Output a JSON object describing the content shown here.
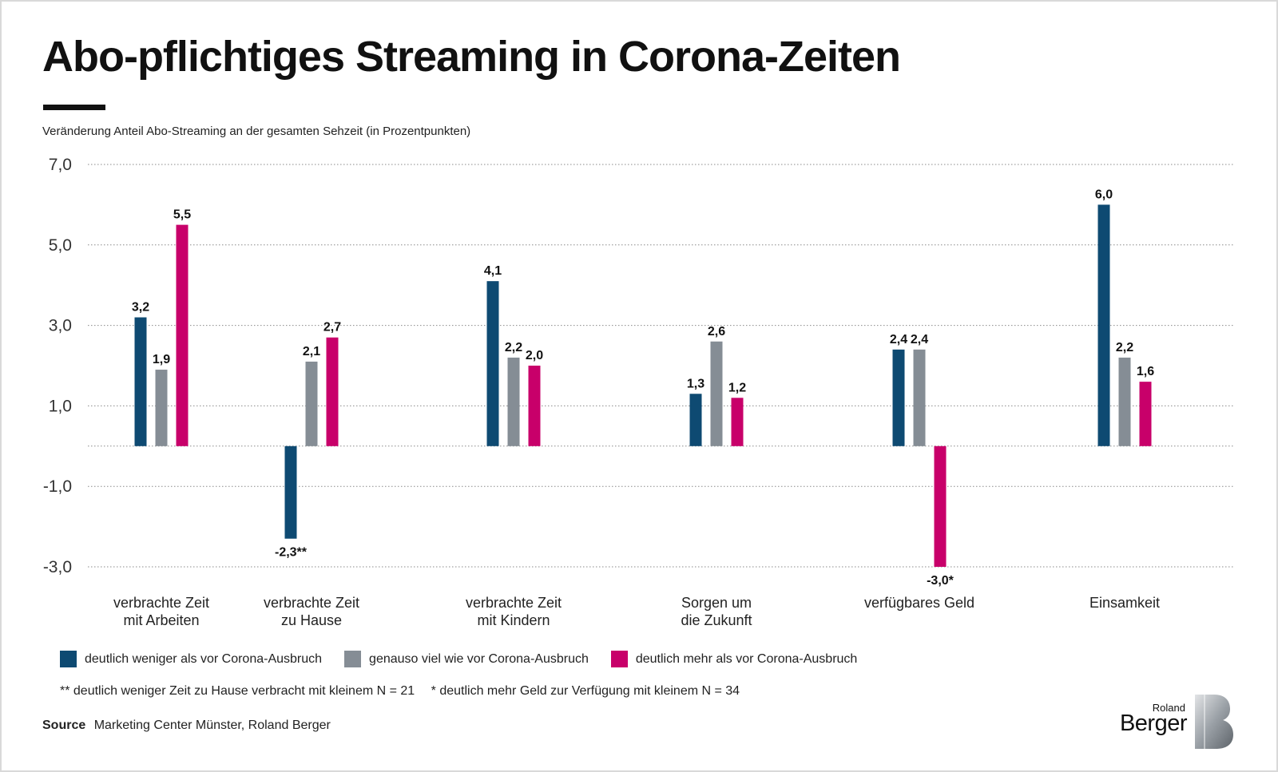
{
  "title": "Abo-pflichtiges Streaming in Corona-Zeiten",
  "subtitle": "Veränderung Anteil Abo-Streaming an der gesamten Sehzeit (in Prozentpunkten)",
  "chart_data": {
    "type": "bar",
    "ylim": [
      -3.0,
      7.0
    ],
    "yticks": [
      {
        "value": 7.0,
        "label": "7,0"
      },
      {
        "value": 5.0,
        "label": "5,0"
      },
      {
        "value": 3.0,
        "label": "3,0"
      },
      {
        "value": 1.0,
        "label": "1,0"
      },
      {
        "value": -1.0,
        "label": "-1,0"
      },
      {
        "value": -3.0,
        "label": "-3,0"
      }
    ],
    "grid": true,
    "categories": [
      [
        "verbrachte Zeit",
        "mit Arbeiten"
      ],
      [
        "verbrachte Zeit",
        "zu Hause"
      ],
      [
        "verbrachte Zeit",
        "mit Kindern"
      ],
      [
        "Sorgen um",
        "die Zukunft"
      ],
      [
        "verfügbares Geld"
      ],
      [
        "Einsamkeit"
      ]
    ],
    "series": [
      {
        "name": "deutlich weniger als vor Corona-Ausbruch",
        "color": "#0e4a72",
        "values": [
          3.2,
          -2.3,
          4.1,
          1.3,
          2.4,
          6.0
        ],
        "labels": [
          "3,2",
          "-2,3**",
          "4,1",
          "1,3",
          "2,4",
          "6,0"
        ]
      },
      {
        "name": "genauso viel wie vor Corona-Ausbruch",
        "color": "#858d95",
        "values": [
          1.9,
          2.1,
          2.2,
          2.6,
          2.4,
          2.2
        ],
        "labels": [
          "1,9",
          "2,1",
          "2,2",
          "2,6",
          "2,4",
          "2,2"
        ]
      },
      {
        "name": "deutlich mehr als vor Corona-Ausbruch",
        "color": "#c8006a",
        "values": [
          5.5,
          2.7,
          2.0,
          1.2,
          -3.0,
          1.6
        ],
        "labels": [
          "5,5",
          "2,7",
          "2,0",
          "1,2",
          "-3,0*",
          "1,6"
        ]
      }
    ],
    "legend_position": "bottom-left"
  },
  "footnotes": [
    "** deutlich weniger Zeit zu Hause verbracht mit kleinem N = 21",
    "* deutlich mehr Geld zur Verfügung mit kleinem N = 34"
  ],
  "source": {
    "label": "Source",
    "text": "Marketing Center Münster, Roland Berger"
  },
  "logo": {
    "top": "Roland",
    "main": "Berger"
  }
}
